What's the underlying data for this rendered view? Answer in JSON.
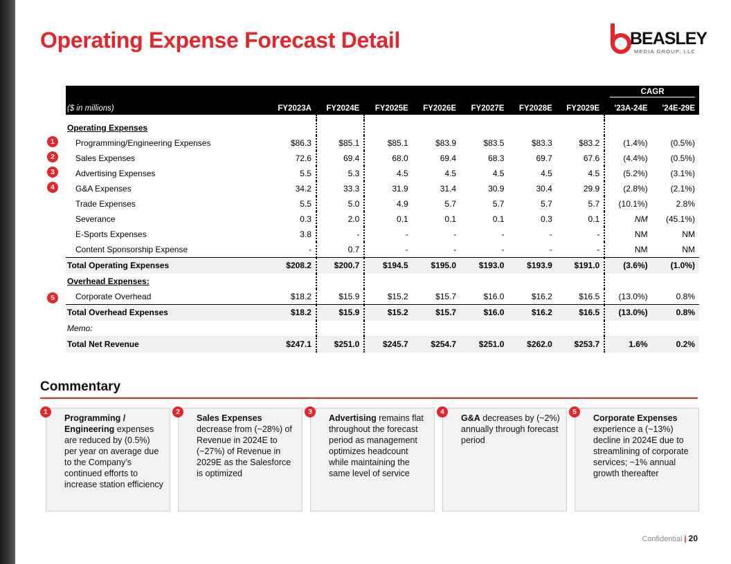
{
  "title": "Operating Expense Forecast Detail",
  "logo": {
    "word": "BEASLEY",
    "sub": "MEDIA GROUP, LLC"
  },
  "table": {
    "units_label": "($ in millions)",
    "cagr_label": "CAGR",
    "columns": [
      "FY2023A",
      "FY2024E",
      "FY2025E",
      "FY2026E",
      "FY2027E",
      "FY2028E",
      "FY2029E",
      "'23A-24E",
      "'24E-29E"
    ],
    "section1": "Operating Expenses",
    "rows": [
      {
        "label": "Programming/Engineering Expenses",
        "values": [
          "$86.3",
          "$85.1",
          "$85.1",
          "$83.9",
          "$83.5",
          "$83.3",
          "$83.2",
          "(1.4%)",
          "(0.5%)"
        ]
      },
      {
        "label": "Sales Expenses",
        "values": [
          "72.6",
          "69.4",
          "68.0",
          "69.4",
          "68.3",
          "69.7",
          "67.6",
          "(4.4%)",
          "(0.5%)"
        ]
      },
      {
        "label": "Advertising Expenses",
        "values": [
          "5.5",
          "5.3",
          "4.5",
          "4.5",
          "4.5",
          "4.5",
          "4.5",
          "(5.2%)",
          "(3.1%)"
        ]
      },
      {
        "label": "G&A Expenses",
        "values": [
          "34.2",
          "33.3",
          "31.9",
          "31.4",
          "30.9",
          "30.4",
          "29.9",
          "(2.8%)",
          "(2.1%)"
        ]
      },
      {
        "label": "Trade Expenses",
        "values": [
          "5.5",
          "5.0",
          "4.9",
          "5.7",
          "5.7",
          "5.7",
          "5.7",
          "(10.1%)",
          "2.8%"
        ]
      },
      {
        "label": "Severance",
        "values": [
          "0.3",
          "2.0",
          "0.1",
          "0.1",
          "0.1",
          "0.3",
          "0.1",
          "NM",
          "(45.1%)"
        ]
      },
      {
        "label": "E-Sports Expenses",
        "values": [
          "3.8",
          "-",
          "-",
          "-",
          "-",
          "-",
          "-",
          "NM",
          "NM"
        ]
      },
      {
        "label": "Content Sponsorship Expense",
        "values": [
          "-",
          "0.7",
          "-",
          "-",
          "-",
          "-",
          "-",
          "NM",
          "NM"
        ]
      }
    ],
    "total_opex": {
      "label": "Total Operating Expenses",
      "values": [
        "$208.2",
        "$200.7",
        "$194.5",
        "$195.0",
        "$193.0",
        "$193.9",
        "$191.0",
        "(3.6%)",
        "(1.0%)"
      ]
    },
    "section2": "Overhead Expenses:",
    "overhead_row": {
      "label": "Corporate Overhead",
      "values": [
        "$18.2",
        "$15.9",
        "$15.2",
        "$15.7",
        "$16.0",
        "$16.2",
        "$16.5",
        "(13.0%)",
        "0.8%"
      ]
    },
    "total_overhead": {
      "label": "Total Overhead Expenses",
      "values": [
        "$18.2",
        "$15.9",
        "$15.2",
        "$15.7",
        "$16.0",
        "$16.2",
        "$16.5",
        "(13.0%)",
        "0.8%"
      ]
    },
    "memo_label": "Memo:",
    "total_revenue": {
      "label": "Total Net Revenue",
      "values": [
        "$247.1",
        "$251.0",
        "$245.7",
        "$254.7",
        "$251.0",
        "$262.0",
        "$253.7",
        "1.6%",
        "0.2%"
      ]
    }
  },
  "markers": [
    "1",
    "2",
    "3",
    "4",
    "5"
  ],
  "commentary": {
    "title": "Commentary",
    "cards": [
      {
        "num": "1",
        "bold": "Programming / Engineering",
        "text": " expenses are reduced by (0.5%) per year on average due to the Company’s continued efforts to increase station efficiency"
      },
      {
        "num": "2",
        "bold": "Sales Expenses",
        "text": " decrease from (~28%) of Revenue in 2024E to (~27%) of Revenue in 2029E as the Salesforce is optimized"
      },
      {
        "num": "3",
        "bold": "Advertising",
        "text": " remains flat throughout the forecast period as management optimizes headcount while maintaining the same level of service"
      },
      {
        "num": "4",
        "bold": "G&A",
        "text": " decreases by (~2%) annually through forecast period"
      },
      {
        "num": "5",
        "bold": "Corporate Expenses",
        "text": " experience a (~13%) decline in 2024E due to streamlining of corporate services; ~1% annual growth thereafter"
      }
    ]
  },
  "footer": {
    "label": "Confidential",
    "separator": "|",
    "page": "20"
  }
}
